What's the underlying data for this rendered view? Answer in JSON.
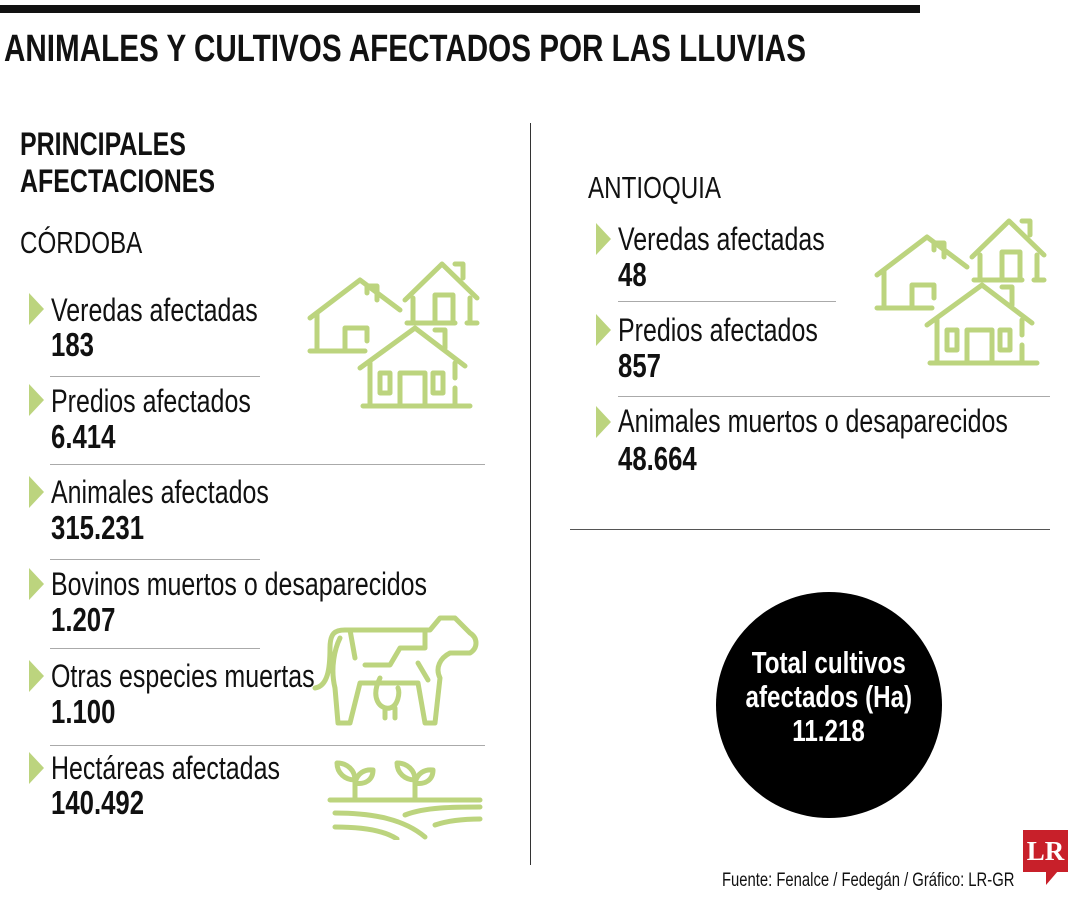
{
  "title": "ANIMALES Y CULTIVOS AFECTADOS POR LAS LLUVIAS",
  "subtitle_line1": "PRINCIPALES",
  "subtitle_line2": "AFECTACIONES",
  "accent_color": "#bcd47e",
  "cordoba": {
    "region": "CÓRDOBA",
    "items": [
      {
        "label": "Veredas afectadas",
        "value": "183"
      },
      {
        "label": "Predios afectados",
        "value": "6.414"
      },
      {
        "label": "Animales afectados",
        "value": "315.231"
      },
      {
        "label": "Bovinos muertos o desaparecidos",
        "value": "1.207"
      },
      {
        "label": "Otras especies muertas",
        "value": "1.100"
      },
      {
        "label": "Hectáreas afectadas",
        "value": "140.492"
      }
    ]
  },
  "antioquia": {
    "region": "ANTIOQUIA",
    "items": [
      {
        "label": "Veredas afectadas",
        "value": "48"
      },
      {
        "label": "Predios afectados",
        "value": "857"
      },
      {
        "label": "Animales muertos o desaparecidos",
        "value": "48.664"
      }
    ]
  },
  "total": {
    "line1": "Total cultivos",
    "line2": "afectados (Ha)",
    "value": "11.218"
  },
  "source": "Fuente: Fenalce / Fedegán / Gráfico: LR-GR",
  "logo": "LR",
  "icons": [
    "houses-icon",
    "cow-icon",
    "crops-icon"
  ]
}
